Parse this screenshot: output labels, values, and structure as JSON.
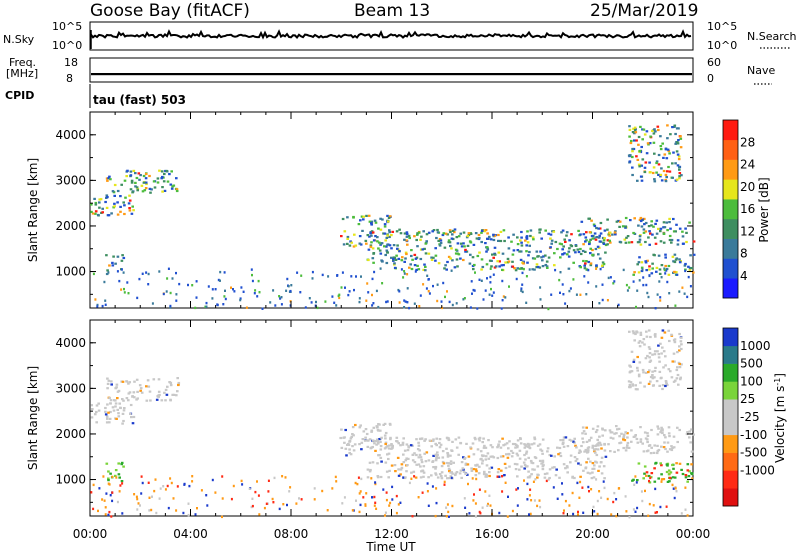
{
  "header": {
    "station": "Goose Bay (fitACF)",
    "beam": "Beam 13",
    "date": "25/Mar/2019"
  },
  "status_panels": {
    "nsky_label": "N.Sky",
    "nsky_ticks": [
      "10^5",
      "10^0"
    ],
    "nsearch_label": "N.Search",
    "nsearch_ticks": [
      "10^5",
      "10^0"
    ],
    "freq_label_1": "Freq.",
    "freq_label_2": "[MHz]",
    "freq_ticks": [
      "18",
      "8"
    ],
    "nave_label": "Nave",
    "nave_ticks": [
      "60",
      "0"
    ],
    "cpid_label": "CPID",
    "cpid_text": "tau (fast) 503"
  },
  "chart_data": [
    {
      "type": "heatmap",
      "panel": "power",
      "xlabel": "Time UT",
      "ylabel": "Slant Range [km]",
      "xlim": [
        0,
        24
      ],
      "ylim": [
        200,
        4500
      ],
      "x_ticks": [
        "00:00",
        "04:00",
        "08:00",
        "12:00",
        "16:00",
        "20:00",
        "00:00"
      ],
      "y_ticks": [
        1000,
        2000,
        3000,
        4000
      ],
      "colorbar": {
        "label": "Power [dB]",
        "range": [
          0,
          32
        ],
        "ticks": [
          4,
          8,
          12,
          16,
          20,
          24,
          28
        ],
        "colors": [
          "#1a1aff",
          "#2050d0",
          "#3a7a9a",
          "#3e8e60",
          "#4cbc3c",
          "#e6e61c",
          "#ff9a14",
          "#ff6014",
          "#ff1a10"
        ]
      },
      "regions": [
        {
          "t": [
            0.0,
            1.7
          ],
          "r": [
            2250,
            2700
          ]
        },
        {
          "t": [
            0.6,
            3.5
          ],
          "r": [
            2750,
            3250
          ]
        },
        {
          "t": [
            0.6,
            1.3
          ],
          "r": [
            950,
            1400
          ]
        },
        {
          "t": [
            9.9,
            12.0
          ],
          "r": [
            1550,
            2250
          ]
        },
        {
          "t": [
            11.0,
            20.5
          ],
          "r": [
            1050,
            1950
          ]
        },
        {
          "t": [
            19.5,
            24.0
          ],
          "r": [
            1600,
            2200
          ]
        },
        {
          "t": [
            21.5,
            24.0
          ],
          "r": [
            950,
            1400
          ]
        },
        {
          "t": [
            21.4,
            23.5
          ],
          "r": [
            3000,
            4300
          ]
        }
      ]
    },
    {
      "type": "heatmap",
      "panel": "velocity",
      "xlabel": "Time UT",
      "ylabel": "Slant Range [km]",
      "xlim": [
        0,
        24
      ],
      "ylim": [
        200,
        4500
      ],
      "x_ticks": [
        "00:00",
        "04:00",
        "08:00",
        "12:00",
        "16:00",
        "20:00",
        "00:00"
      ],
      "y_ticks": [
        1000,
        2000,
        3000,
        4000
      ],
      "colorbar": {
        "label": "Velocity [m s^-1]",
        "ticks": [
          "1000",
          "500",
          "100",
          "25",
          "-25",
          "-100",
          "-500",
          "-1000"
        ],
        "colors": [
          "#1a3acc",
          "#2a7a8a",
          "#2aaa2a",
          "#7ad43a",
          "#c8c8c8",
          "#c8c8c8",
          "#ff9a14",
          "#ff6a14",
          "#ff2a14",
          "#e01010"
        ]
      },
      "regions": [
        {
          "t": [
            0.0,
            1.7
          ],
          "r": [
            2250,
            2700
          ]
        },
        {
          "t": [
            0.6,
            3.5
          ],
          "r": [
            2750,
            3250
          ]
        },
        {
          "t": [
            0.6,
            1.3
          ],
          "r": [
            950,
            1400
          ]
        },
        {
          "t": [
            9.9,
            12.0
          ],
          "r": [
            1550,
            2250
          ]
        },
        {
          "t": [
            11.0,
            20.5
          ],
          "r": [
            1050,
            1950
          ]
        },
        {
          "t": [
            19.5,
            24.0
          ],
          "r": [
            1600,
            2200
          ]
        },
        {
          "t": [
            21.5,
            24.0
          ],
          "r": [
            950,
            1400
          ]
        },
        {
          "t": [
            21.4,
            23.5
          ],
          "r": [
            3000,
            4300
          ]
        }
      ]
    }
  ]
}
